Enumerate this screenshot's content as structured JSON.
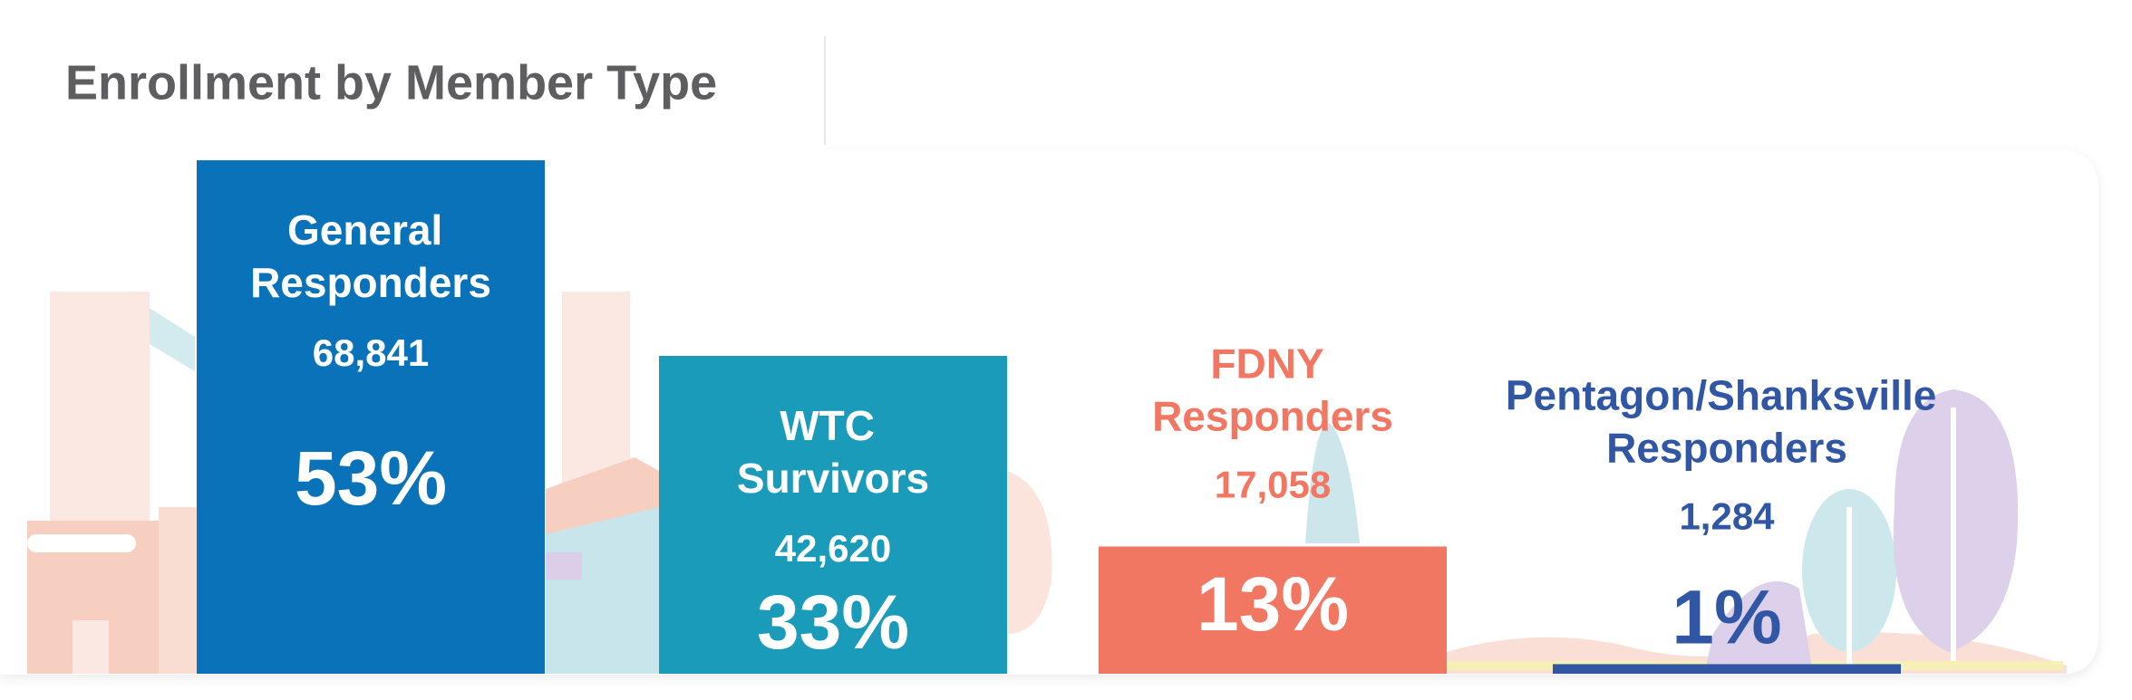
{
  "chart_data": {
    "type": "bar",
    "title": "Enrollment by Member Type",
    "categories": [
      "General Responders",
      "WTC Survivors",
      "FDNY Responders",
      "Pentagon/Shanksville Responders"
    ],
    "values": [
      68841,
      42620,
      17058,
      1284
    ],
    "value_labels": [
      "68,841",
      "42,620",
      "17,058",
      "1,284"
    ],
    "percentages": [
      53,
      33,
      13,
      1
    ],
    "percentage_labels": [
      "53%",
      "33%",
      "13%",
      "1%"
    ],
    "colors": [
      "#0a72b8",
      "#1a9bba",
      "#f27762",
      "#3157a4"
    ]
  }
}
